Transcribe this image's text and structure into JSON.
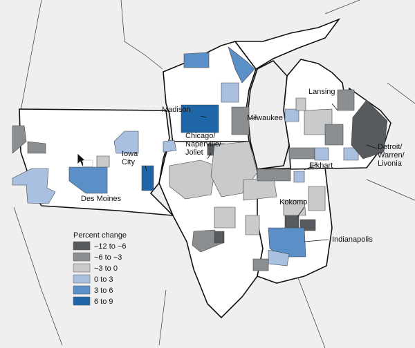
{
  "labels": [
    {
      "lines": [
        "Madison"
      ]
    },
    {
      "lines": [
        "Milwaukee"
      ]
    },
    {
      "lines": [
        "Lansing"
      ]
    },
    {
      "lines": [
        "Detroit/",
        "Warren/",
        "Livonia"
      ]
    },
    {
      "lines": [
        "Chicago/",
        "Naperville/",
        "Joliet"
      ]
    },
    {
      "lines": [
        "Elkhart"
      ]
    },
    {
      "lines": [
        "Iowa",
        "City"
      ]
    },
    {
      "lines": [
        "Des Moines"
      ]
    },
    {
      "lines": [
        "Kokomo"
      ]
    },
    {
      "lines": [
        "Indianapolis"
      ]
    }
  ],
  "legend": {
    "title": "Percent change",
    "items": [
      {
        "label": "−12 to −6",
        "color": "#575b5f"
      },
      {
        "label": "−6 to −3",
        "color": "#8b8e91"
      },
      {
        "label": "−3 to 0",
        "color": "#c9cacb"
      },
      {
        "label": "0 to 3",
        "color": "#a9c0e1"
      },
      {
        "label": "3 to 6",
        "color": "#5b8fc8"
      },
      {
        "label": "6 to 9",
        "color": "#1e66a8"
      }
    ]
  }
}
